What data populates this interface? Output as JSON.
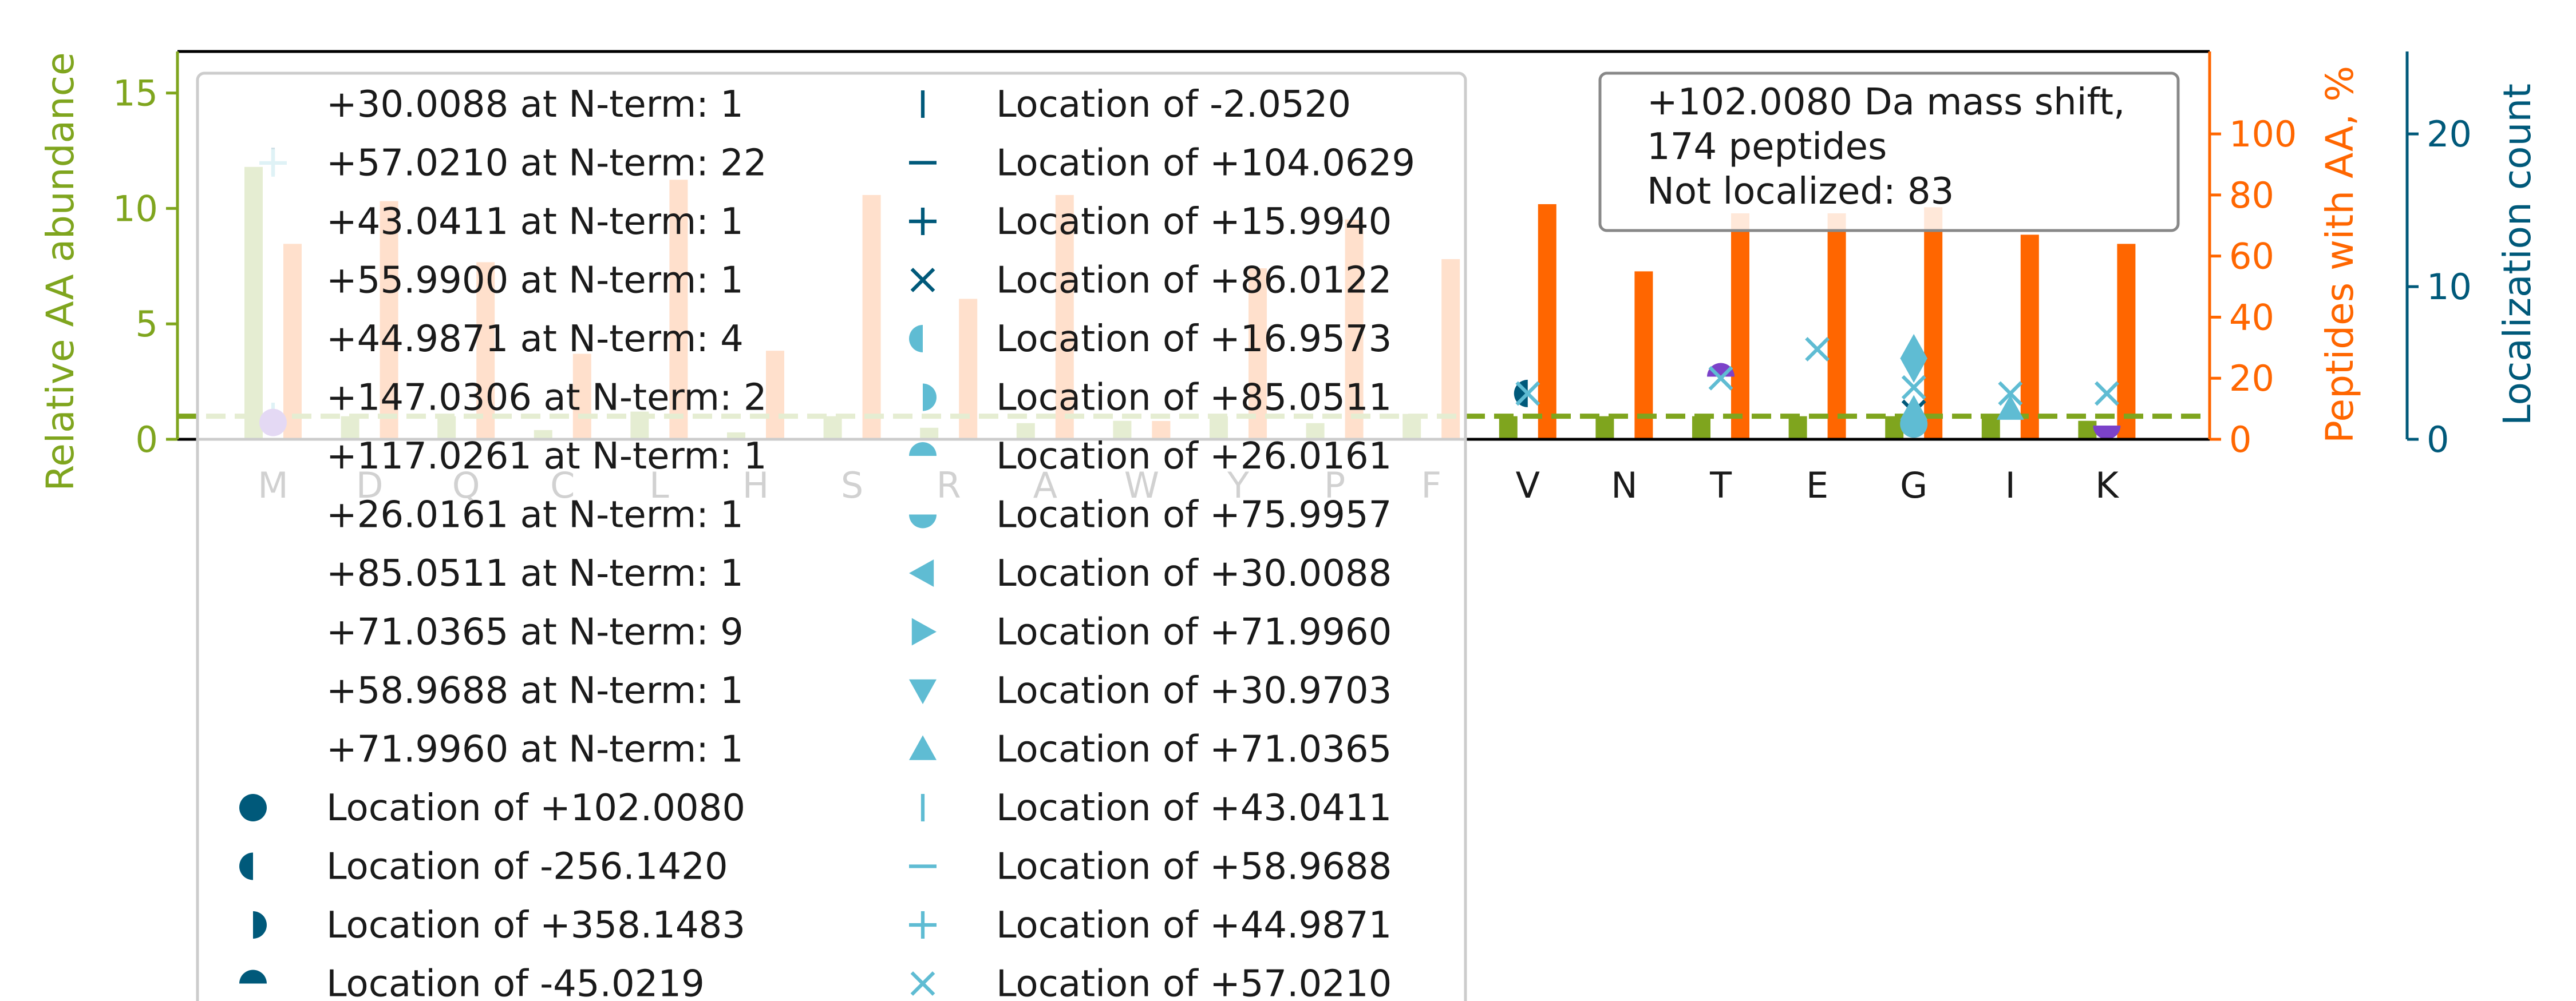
{
  "chart_data": {
    "type": "bar",
    "categories": [
      "M",
      "D",
      "Q",
      "C",
      "L",
      "H",
      "S",
      "R",
      "A",
      "W",
      "Y",
      "P",
      "F",
      "V",
      "N",
      "T",
      "E",
      "G",
      "I",
      "K"
    ],
    "series": [
      {
        "values": [
          11.8,
          1.0,
          1.0,
          0.4,
          1.2,
          0.3,
          1.0,
          0.5,
          0.7,
          0.8,
          1.0,
          0.7,
          1.1,
          1.0,
          1.0,
          1.0,
          1.0,
          1.0,
          1.0,
          0.8
        ],
        "axis": "left",
        "color": "#7fa51e"
      },
      {
        "values": [
          64,
          78,
          58,
          28,
          85,
          29,
          80,
          46,
          80,
          6,
          56,
          72,
          59,
          77,
          55,
          74,
          74,
          76,
          67,
          64
        ],
        "axis": "right",
        "color": "#ff6600"
      }
    ],
    "baseline": {
      "value": 1.0,
      "color": "#7fa51e"
    },
    "y_left": {
      "label": "Relative AA abundance",
      "ticks": [
        "0",
        "5",
        "10",
        "15"
      ],
      "lim": [
        0,
        16.8
      ],
      "color": "#7fa51e"
    },
    "y_right": {
      "label": "Peptides with AA, %",
      "ticks": [
        "0",
        "20",
        "40",
        "60",
        "80",
        "100"
      ],
      "lim": [
        0,
        127
      ],
      "color": "#ff6600"
    },
    "y_loc": {
      "label": "Localization count",
      "ticks": [
        "0",
        "10",
        "20"
      ],
      "lim": [
        0,
        25.4
      ],
      "color": "#00597a"
    },
    "markers": [
      {
        "cat": "M",
        "shape": "vline",
        "color": "#00597a",
        "value": 18.2
      },
      {
        "cat": "M",
        "shape": "plus",
        "color": "#5fbcd3",
        "value": 18.1
      },
      {
        "cat": "M",
        "shape": "vline",
        "color": "#5fbcd3",
        "value": 1.5
      },
      {
        "cat": "M",
        "shape": "circle",
        "color": "#7b42c9",
        "value": 1.1
      },
      {
        "cat": "V",
        "shape": "half-left",
        "color": "#00597a",
        "value": 3.0
      },
      {
        "cat": "V",
        "shape": "x",
        "color": "#5fbcd3",
        "value": 3.0
      },
      {
        "cat": "T",
        "shape": "half-top",
        "color": "#7b42c9",
        "value": 4.1
      },
      {
        "cat": "T",
        "shape": "x",
        "color": "#5fbcd3",
        "value": 4.0
      },
      {
        "cat": "E",
        "shape": "x",
        "color": "#5fbcd3",
        "value": 5.9
      },
      {
        "cat": "G",
        "shape": "triangle-up",
        "color": "#5fbcd3",
        "value": 6.0
      },
      {
        "cat": "G",
        "shape": "triangle-down",
        "color": "#5fbcd3",
        "value": 4.6
      },
      {
        "cat": "G",
        "shape": "x",
        "color": "#5fbcd3",
        "value": 3.4
      },
      {
        "cat": "G",
        "shape": "x",
        "color": "#00597a",
        "value": 1.8
      },
      {
        "cat": "G",
        "shape": "triangle-up",
        "color": "#5fbcd3",
        "value": 2.0
      },
      {
        "cat": "G",
        "shape": "circle",
        "color": "#5fbcd3",
        "value": 1.0
      },
      {
        "cat": "I",
        "shape": "x",
        "color": "#5fbcd3",
        "value": 3.0
      },
      {
        "cat": "I",
        "shape": "triangle-up",
        "color": "#5fbcd3",
        "value": 2.0
      },
      {
        "cat": "K",
        "shape": "x",
        "color": "#5fbcd3",
        "value": 3.0
      },
      {
        "cat": "K",
        "shape": "half-bottom",
        "color": "#7b42c9",
        "value": 0.9
      }
    ],
    "info_box": [
      "+102.0080 Da mass shift,",
      "174 peptides",
      "Not localized: 83"
    ],
    "legend": [
      {
        "text": "+30.0088 at N-term: 1",
        "marker": "none",
        "color": ""
      },
      {
        "text": "+57.0210 at N-term: 22",
        "marker": "none",
        "color": ""
      },
      {
        "text": "+43.0411 at N-term: 1",
        "marker": "none",
        "color": ""
      },
      {
        "text": "+55.9900 at N-term: 1",
        "marker": "none",
        "color": ""
      },
      {
        "text": "+44.9871 at N-term: 4",
        "marker": "none",
        "color": ""
      },
      {
        "text": "+147.0306 at N-term: 2",
        "marker": "none",
        "color": ""
      },
      {
        "text": "+117.0261 at N-term: 1",
        "marker": "none",
        "color": ""
      },
      {
        "text": "+26.0161 at N-term: 1",
        "marker": "none",
        "color": ""
      },
      {
        "text": "+85.0511 at N-term: 1",
        "marker": "none",
        "color": ""
      },
      {
        "text": "+71.0365 at N-term: 9",
        "marker": "none",
        "color": ""
      },
      {
        "text": "+58.9688 at N-term: 1",
        "marker": "none",
        "color": ""
      },
      {
        "text": "+71.9960 at N-term: 1",
        "marker": "none",
        "color": ""
      },
      {
        "text": "Location of +102.0080",
        "marker": "circle",
        "color": "#00597a"
      },
      {
        "text": "Location of -256.1420",
        "marker": "half-left",
        "color": "#00597a"
      },
      {
        "text": "Location of +358.1483",
        "marker": "half-right",
        "color": "#00597a"
      },
      {
        "text": "Location of -45.0219",
        "marker": "half-top",
        "color": "#00597a"
      },
      {
        "text": "Location of -2.0520",
        "marker": "vline",
        "color": "#00597a"
      },
      {
        "text": "Location of +104.0629",
        "marker": "hline",
        "color": "#00597a"
      },
      {
        "text": "Location of +15.9940",
        "marker": "plus",
        "color": "#00597a"
      },
      {
        "text": "Location of +86.0122",
        "marker": "x",
        "color": "#00597a"
      },
      {
        "text": "Location of +16.9573",
        "marker": "half-left",
        "color": "#5fbcd3"
      },
      {
        "text": "Location of +85.0511",
        "marker": "half-right",
        "color": "#5fbcd3"
      },
      {
        "text": "Location of +26.0161",
        "marker": "half-top",
        "color": "#5fbcd3"
      },
      {
        "text": "Location of +75.9957",
        "marker": "half-bottom",
        "color": "#5fbcd3"
      },
      {
        "text": "Location of +30.0088",
        "marker": "triangle-left",
        "color": "#5fbcd3"
      },
      {
        "text": "Location of +71.9960",
        "marker": "triangle-right",
        "color": "#5fbcd3"
      },
      {
        "text": "Location of +30.9703",
        "marker": "triangle-down",
        "color": "#5fbcd3"
      },
      {
        "text": "Location of +71.0365",
        "marker": "triangle-up",
        "color": "#5fbcd3"
      },
      {
        "text": "Location of +43.0411",
        "marker": "vline",
        "color": "#5fbcd3"
      },
      {
        "text": "Location of +58.9688",
        "marker": "hline",
        "color": "#5fbcd3"
      },
      {
        "text": "Location of +44.9871",
        "marker": "plus",
        "color": "#5fbcd3"
      },
      {
        "text": "Location of +57.0210",
        "marker": "x",
        "color": "#5fbcd3"
      }
    ],
    "legend_placement": "upper-left",
    "grid": false
  }
}
